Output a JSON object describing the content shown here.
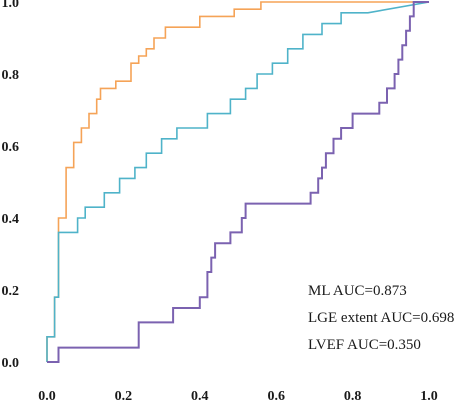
{
  "chart_data": {
    "type": "line",
    "title": "",
    "xlabel": "",
    "ylabel": "",
    "xlim": [
      0,
      1
    ],
    "ylim": [
      0,
      1
    ],
    "grid": false,
    "legend_placement": "bottom-right",
    "x_ticks": [
      "0.0",
      "0.2",
      "0.4",
      "0.6",
      "0.8",
      "1.0"
    ],
    "y_ticks": [
      "0.0",
      "0.2",
      "0.4",
      "0.6",
      "0.8",
      "1.0"
    ],
    "series": [
      {
        "name": "ML AUC=0.873",
        "color": "#f5a357",
        "points": [
          [
            0,
            0
          ],
          [
            0,
            0.07
          ],
          [
            0.02,
            0.07
          ],
          [
            0.02,
            0.18
          ],
          [
            0.03,
            0.18
          ],
          [
            0.03,
            0.4
          ],
          [
            0.05,
            0.4
          ],
          [
            0.05,
            0.54
          ],
          [
            0.07,
            0.54
          ],
          [
            0.07,
            0.61
          ],
          [
            0.09,
            0.61
          ],
          [
            0.09,
            0.65
          ],
          [
            0.11,
            0.65
          ],
          [
            0.11,
            0.69
          ],
          [
            0.13,
            0.69
          ],
          [
            0.13,
            0.73
          ],
          [
            0.14,
            0.73
          ],
          [
            0.14,
            0.76
          ],
          [
            0.18,
            0.76
          ],
          [
            0.18,
            0.78
          ],
          [
            0.22,
            0.78
          ],
          [
            0.22,
            0.83
          ],
          [
            0.24,
            0.83
          ],
          [
            0.24,
            0.85
          ],
          [
            0.26,
            0.85
          ],
          [
            0.26,
            0.87
          ],
          [
            0.28,
            0.87
          ],
          [
            0.28,
            0.9
          ],
          [
            0.31,
            0.9
          ],
          [
            0.31,
            0.93
          ],
          [
            0.4,
            0.93
          ],
          [
            0.4,
            0.96
          ],
          [
            0.49,
            0.96
          ],
          [
            0.49,
            0.98
          ],
          [
            0.56,
            0.98
          ],
          [
            0.56,
            1.0
          ],
          [
            0.98,
            1.0
          ],
          [
            1.0,
            1.0
          ]
        ]
      },
      {
        "name": "LGE extent AUC=0.698",
        "color": "#4fb3c9",
        "points": [
          [
            0,
            0
          ],
          [
            0,
            0.07
          ],
          [
            0.02,
            0.07
          ],
          [
            0.02,
            0.18
          ],
          [
            0.03,
            0.18
          ],
          [
            0.03,
            0.36
          ],
          [
            0.08,
            0.36
          ],
          [
            0.08,
            0.4
          ],
          [
            0.1,
            0.4
          ],
          [
            0.1,
            0.43
          ],
          [
            0.15,
            0.43
          ],
          [
            0.15,
            0.47
          ],
          [
            0.19,
            0.47
          ],
          [
            0.19,
            0.51
          ],
          [
            0.23,
            0.51
          ],
          [
            0.23,
            0.54
          ],
          [
            0.26,
            0.54
          ],
          [
            0.26,
            0.58
          ],
          [
            0.3,
            0.58
          ],
          [
            0.3,
            0.62
          ],
          [
            0.34,
            0.62
          ],
          [
            0.34,
            0.65
          ],
          [
            0.42,
            0.65
          ],
          [
            0.42,
            0.69
          ],
          [
            0.48,
            0.69
          ],
          [
            0.48,
            0.73
          ],
          [
            0.52,
            0.73
          ],
          [
            0.52,
            0.76
          ],
          [
            0.55,
            0.76
          ],
          [
            0.55,
            0.8
          ],
          [
            0.59,
            0.8
          ],
          [
            0.59,
            0.83
          ],
          [
            0.63,
            0.83
          ],
          [
            0.63,
            0.87
          ],
          [
            0.67,
            0.87
          ],
          [
            0.67,
            0.91
          ],
          [
            0.72,
            0.91
          ],
          [
            0.72,
            0.94
          ],
          [
            0.77,
            0.94
          ],
          [
            0.77,
            0.97
          ],
          [
            0.84,
            0.97
          ],
          [
            1.0,
            1.0
          ]
        ]
      },
      {
        "name": "LVEF AUC=0.350",
        "color": "#7b62b0",
        "points": [
          [
            0,
            0
          ],
          [
            0.03,
            0
          ],
          [
            0.03,
            0.04
          ],
          [
            0.24,
            0.04
          ],
          [
            0.24,
            0.11
          ],
          [
            0.33,
            0.11
          ],
          [
            0.33,
            0.15
          ],
          [
            0.4,
            0.15
          ],
          [
            0.4,
            0.18
          ],
          [
            0.42,
            0.18
          ],
          [
            0.42,
            0.25
          ],
          [
            0.43,
            0.25
          ],
          [
            0.43,
            0.29
          ],
          [
            0.44,
            0.29
          ],
          [
            0.44,
            0.33
          ],
          [
            0.48,
            0.33
          ],
          [
            0.48,
            0.36
          ],
          [
            0.51,
            0.36
          ],
          [
            0.51,
            0.4
          ],
          [
            0.52,
            0.4
          ],
          [
            0.52,
            0.44
          ],
          [
            0.69,
            0.44
          ],
          [
            0.69,
            0.47
          ],
          [
            0.71,
            0.47
          ],
          [
            0.71,
            0.51
          ],
          [
            0.72,
            0.51
          ],
          [
            0.72,
            0.54
          ],
          [
            0.73,
            0.54
          ],
          [
            0.73,
            0.58
          ],
          [
            0.75,
            0.58
          ],
          [
            0.75,
            0.62
          ],
          [
            0.77,
            0.62
          ],
          [
            0.77,
            0.65
          ],
          [
            0.8,
            0.65
          ],
          [
            0.8,
            0.69
          ],
          [
            0.87,
            0.69
          ],
          [
            0.87,
            0.72
          ],
          [
            0.89,
            0.72
          ],
          [
            0.89,
            0.76
          ],
          [
            0.91,
            0.76
          ],
          [
            0.91,
            0.8
          ],
          [
            0.92,
            0.8
          ],
          [
            0.92,
            0.84
          ],
          [
            0.93,
            0.84
          ],
          [
            0.93,
            0.88
          ],
          [
            0.94,
            0.88
          ],
          [
            0.94,
            0.92
          ],
          [
            0.95,
            0.92
          ],
          [
            0.95,
            0.96
          ],
          [
            0.96,
            0.96
          ],
          [
            0.96,
            1.0
          ],
          [
            1.0,
            1.0
          ]
        ]
      }
    ]
  }
}
